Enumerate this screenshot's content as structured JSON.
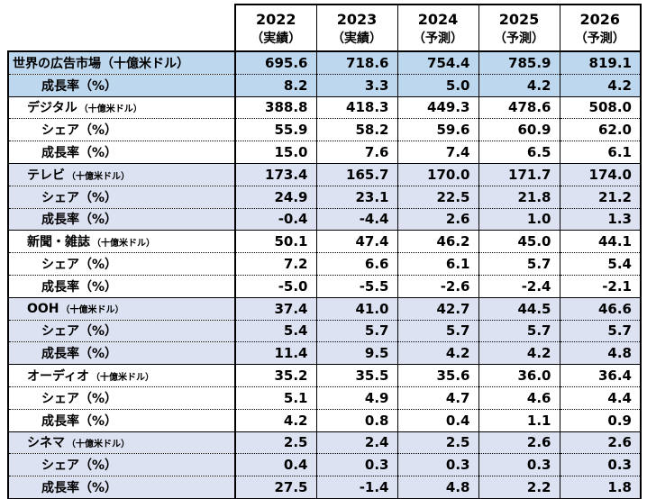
{
  "colors": {
    "group_blue": "#BDD7EE",
    "group_lavender": "#DCE2F1",
    "group_white": "#FFFFFF",
    "border": "#000000"
  },
  "chart_data": {
    "type": "table",
    "title": "",
    "columns": [
      {
        "year": "2022",
        "note": "（実績）"
      },
      {
        "year": "2023",
        "note": "（実績）"
      },
      {
        "year": "2024",
        "note": "（予測）"
      },
      {
        "year": "2025",
        "note": "（予測）"
      },
      {
        "year": "2026",
        "note": "（予測）"
      }
    ],
    "rows": [
      {
        "label": "世界の広告市場",
        "unit": "（十億米ドル）",
        "unit_large": true,
        "indent": 0,
        "bg": "blue",
        "sep": "none",
        "values": [
          "695.6",
          "718.6",
          "754.4",
          "785.9",
          "819.1"
        ]
      },
      {
        "label": "成長率（%）",
        "unit": "",
        "unit_large": false,
        "indent": 2,
        "bg": "blue",
        "sep": "dotted",
        "values": [
          "8.2",
          "3.3",
          "5.0",
          "4.2",
          "4.2"
        ]
      },
      {
        "label": "デジタル",
        "unit": "（十億米ドル）",
        "unit_large": false,
        "indent": 1,
        "bg": "white",
        "sep": "solid",
        "values": [
          "388.8",
          "418.3",
          "449.3",
          "478.6",
          "508.0"
        ]
      },
      {
        "label": "シェア（%）",
        "unit": "",
        "unit_large": false,
        "indent": 2,
        "bg": "white",
        "sep": "dotted",
        "values": [
          "55.9",
          "58.2",
          "59.6",
          "60.9",
          "62.0"
        ]
      },
      {
        "label": "成長率（%）",
        "unit": "",
        "unit_large": false,
        "indent": 2,
        "bg": "white",
        "sep": "dotted",
        "values": [
          "15.0",
          "7.6",
          "7.4",
          "6.5",
          "6.1"
        ]
      },
      {
        "label": "テレビ",
        "unit": "（十億米ドル）",
        "unit_large": false,
        "indent": 1,
        "bg": "lavender",
        "sep": "solid",
        "values": [
          "173.4",
          "165.7",
          "170.0",
          "171.7",
          "174.0"
        ]
      },
      {
        "label": "シェア（%）",
        "unit": "",
        "unit_large": false,
        "indent": 2,
        "bg": "lavender",
        "sep": "dotted",
        "values": [
          "24.9",
          "23.1",
          "22.5",
          "21.8",
          "21.2"
        ]
      },
      {
        "label": "成長率（%）",
        "unit": "",
        "unit_large": false,
        "indent": 2,
        "bg": "lavender",
        "sep": "dotted",
        "values": [
          "-0.4",
          "-4.4",
          "2.6",
          "1.0",
          "1.3"
        ]
      },
      {
        "label": "新聞・雑誌",
        "unit": "（十億米ドル）",
        "unit_large": false,
        "indent": 1,
        "bg": "white",
        "sep": "solid",
        "values": [
          "50.1",
          "47.4",
          "46.2",
          "45.0",
          "44.1"
        ]
      },
      {
        "label": "シェア（%）",
        "unit": "",
        "unit_large": false,
        "indent": 2,
        "bg": "white",
        "sep": "dotted",
        "values": [
          "7.2",
          "6.6",
          "6.1",
          "5.7",
          "5.4"
        ]
      },
      {
        "label": "成長率（%）",
        "unit": "",
        "unit_large": false,
        "indent": 2,
        "bg": "white",
        "sep": "dotted",
        "values": [
          "-5.0",
          "-5.5",
          "-2.6",
          "-2.4",
          "-2.1"
        ]
      },
      {
        "label": "OOH",
        "unit": "（十億米ドル）",
        "unit_large": false,
        "indent": 1,
        "bg": "lavender",
        "sep": "solid",
        "values": [
          "37.4",
          "41.0",
          "42.7",
          "44.5",
          "46.6"
        ]
      },
      {
        "label": "シェア（%）",
        "unit": "",
        "unit_large": false,
        "indent": 2,
        "bg": "lavender",
        "sep": "dotted",
        "values": [
          "5.4",
          "5.7",
          "5.7",
          "5.7",
          "5.7"
        ]
      },
      {
        "label": "成長率（%）",
        "unit": "",
        "unit_large": false,
        "indent": 2,
        "bg": "lavender",
        "sep": "dotted",
        "values": [
          "11.4",
          "9.5",
          "4.2",
          "4.2",
          "4.8"
        ]
      },
      {
        "label": "オーディオ",
        "unit": "（十億米ドル）",
        "unit_large": false,
        "indent": 1,
        "bg": "white",
        "sep": "solid",
        "values": [
          "35.2",
          "35.5",
          "35.6",
          "36.0",
          "36.4"
        ]
      },
      {
        "label": "シェア（%）",
        "unit": "",
        "unit_large": false,
        "indent": 2,
        "bg": "white",
        "sep": "dotted",
        "values": [
          "5.1",
          "4.9",
          "4.7",
          "4.6",
          "4.4"
        ]
      },
      {
        "label": "成長率（%）",
        "unit": "",
        "unit_large": false,
        "indent": 2,
        "bg": "white",
        "sep": "dotted",
        "values": [
          "4.2",
          "0.8",
          "0.4",
          "1.1",
          "0.9"
        ]
      },
      {
        "label": "シネマ",
        "unit": "（十億米ドル）",
        "unit_large": false,
        "indent": 1,
        "bg": "lavender",
        "sep": "solid",
        "values": [
          "2.5",
          "2.4",
          "2.5",
          "2.6",
          "2.6"
        ]
      },
      {
        "label": "シェア（%）",
        "unit": "",
        "unit_large": false,
        "indent": 2,
        "bg": "lavender",
        "sep": "dotted",
        "values": [
          "0.4",
          "0.3",
          "0.3",
          "0.3",
          "0.3"
        ]
      },
      {
        "label": "成長率（%）",
        "unit": "",
        "unit_large": false,
        "indent": 2,
        "bg": "lavender",
        "sep": "dotted",
        "values": [
          "27.5",
          "-1.4",
          "4.8",
          "2.2",
          "1.8"
        ]
      }
    ]
  }
}
